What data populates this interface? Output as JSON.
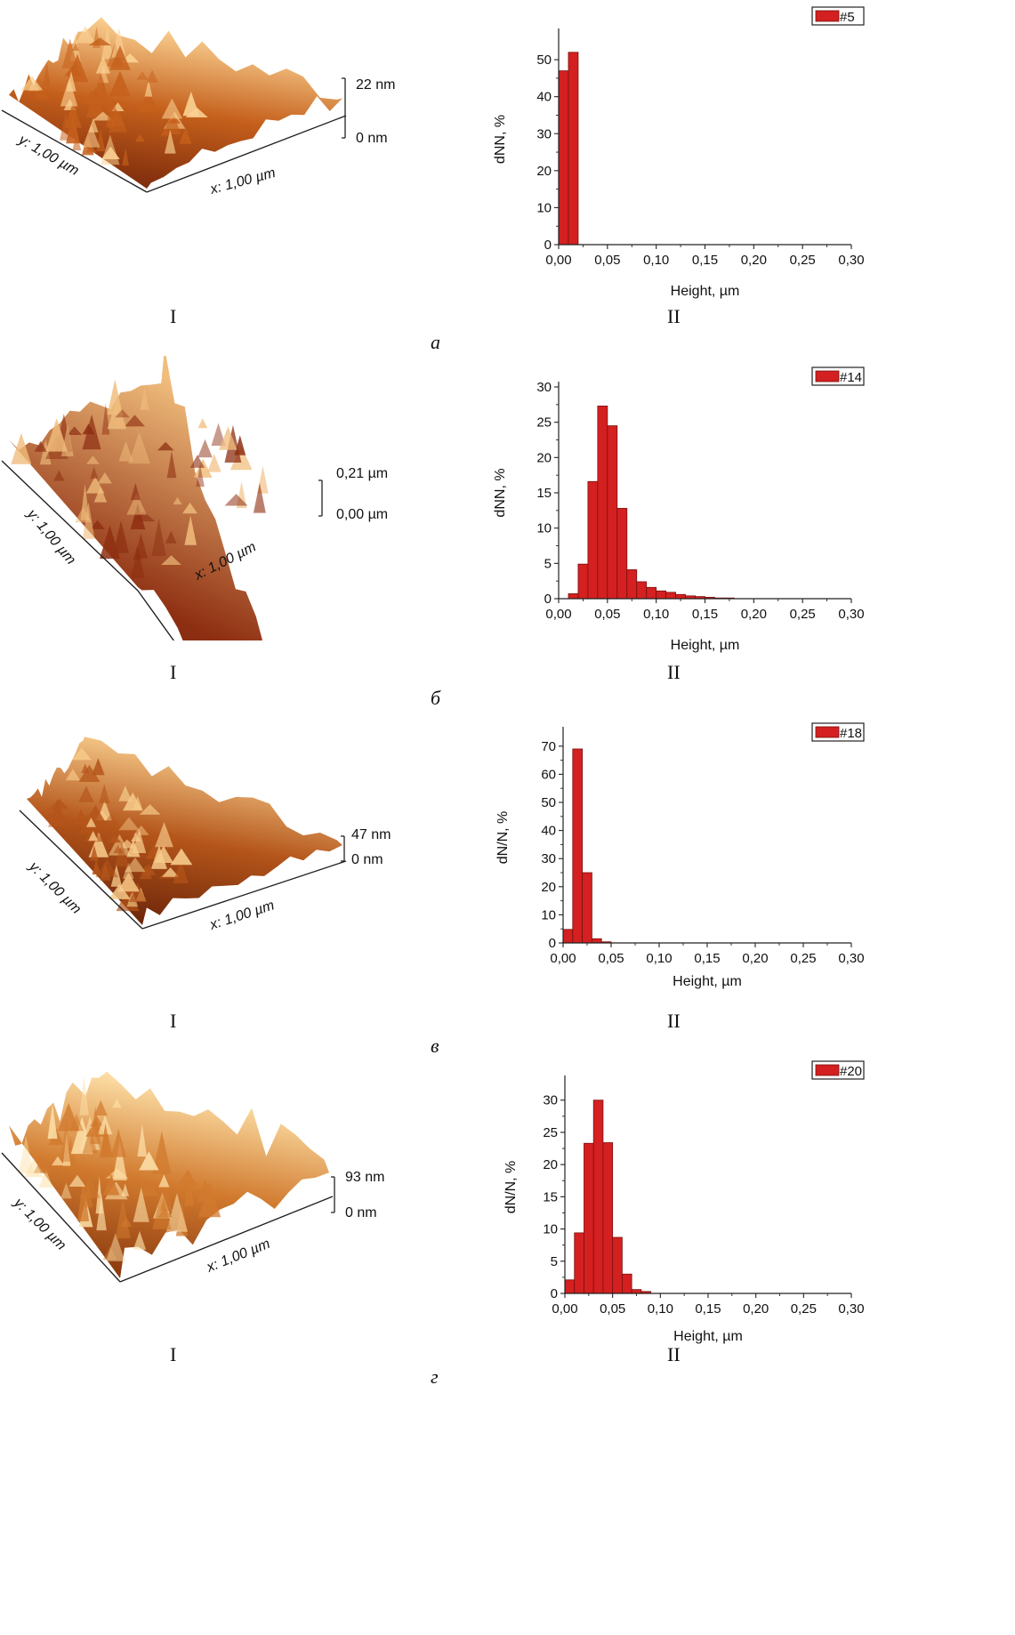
{
  "panels": [
    {
      "letter": "а",
      "caption_left": "I",
      "caption_right": "II",
      "afm": {
        "z_max": "22 nm",
        "z_min": "0 nm",
        "x_label": "x: 1,00 µm",
        "y_label": "y: 1,00 µm",
        "colors": [
          "#6b1e08",
          "#c5601c",
          "#fbd394"
        ]
      },
      "chart_data": {
        "type": "bar",
        "legend": "#5",
        "legend_position": "top-right",
        "xlabel": "Height, µm",
        "ylabel": "dNN, %",
        "xlim": [
          0,
          0.3
        ],
        "ylim": [
          0,
          57
        ],
        "xticks": [
          "0,00",
          "0,05",
          "0,10",
          "0,15",
          "0,20",
          "0,25",
          "0,30"
        ],
        "yticks": [
          0,
          10,
          20,
          30,
          40,
          50
        ],
        "bin_width": 0.01,
        "x": [
          0.005,
          0.015
        ],
        "values": [
          47,
          52
        ],
        "color": "#d42020"
      }
    },
    {
      "letter": "б",
      "caption_left": "I",
      "caption_right": "II",
      "afm": {
        "z_max": "0,21 µm",
        "z_min": "0,00 µm",
        "x_label": "x: 1,00 µm",
        "y_label": "y: 1,00 µm",
        "colors": [
          "#3c0d05",
          "#8e2f12",
          "#f0bd7c"
        ]
      },
      "chart_data": {
        "type": "bar",
        "legend": "#14",
        "legend_position": "top-right",
        "xlabel": "Height, µm",
        "ylabel": "dNN, %",
        "xlim": [
          0,
          0.3
        ],
        "ylim": [
          0,
          30
        ],
        "xticks": [
          "0,00",
          "0,05",
          "0,10",
          "0,15",
          "0,20",
          "0,25",
          "0,30"
        ],
        "yticks": [
          0,
          5,
          10,
          15,
          20,
          25,
          30
        ],
        "bin_width": 0.01,
        "x": [
          0.015,
          0.025,
          0.035,
          0.045,
          0.055,
          0.065,
          0.075,
          0.085,
          0.095,
          0.105,
          0.115,
          0.125,
          0.135,
          0.145,
          0.155,
          0.165,
          0.175
        ],
        "values": [
          0.7,
          4.9,
          16.6,
          27.3,
          24.5,
          12.8,
          4.1,
          2.4,
          1.6,
          1.1,
          0.9,
          0.6,
          0.4,
          0.3,
          0.2,
          0.1,
          0.1
        ],
        "color": "#d42020"
      }
    },
    {
      "letter": "в",
      "caption_left": "I",
      "caption_right": "II",
      "afm": {
        "z_max": "47 nm",
        "z_min": "0 nm",
        "x_label": "x: 1,00 µm",
        "y_label": "y: 1,00 µm",
        "colors": [
          "#5c1a06",
          "#b4551a",
          "#f7cc8c"
        ]
      },
      "chart_data": {
        "type": "bar",
        "legend": "#18",
        "legend_position": "top-right",
        "xlabel": "Height, µm",
        "ylabel": "dN/N, %",
        "xlim": [
          0,
          0.3
        ],
        "ylim": [
          0,
          75
        ],
        "xticks": [
          "0,00",
          "0,05",
          "0,10",
          "0,15",
          "0,20",
          "0,25",
          "0,30"
        ],
        "yticks": [
          0,
          10,
          20,
          30,
          40,
          50,
          60,
          70
        ],
        "bin_width": 0.01,
        "x": [
          0.005,
          0.015,
          0.025,
          0.035,
          0.045
        ],
        "values": [
          4.8,
          69,
          25,
          1.5,
          0.4
        ],
        "color": "#d42020"
      }
    },
    {
      "letter": "г",
      "caption_left": "I",
      "caption_right": "II",
      "afm": {
        "z_max": "93 nm",
        "z_min": "0 nm",
        "x_label": "x: 1,00 µm",
        "y_label": "y: 1,00 µm",
        "colors": [
          "#7a2a08",
          "#d17a2e",
          "#fde0a8"
        ]
      },
      "chart_data": {
        "type": "bar",
        "legend": "#20",
        "legend_position": "top-right",
        "xlabel": "Height, µm",
        "ylabel": "dN/N, %",
        "xlim": [
          0,
          0.3
        ],
        "ylim": [
          0,
          33
        ],
        "xticks": [
          "0,00",
          "0,05",
          "0,10",
          "0,15",
          "0,20",
          "0,25",
          "0,30"
        ],
        "yticks": [
          0,
          5,
          10,
          15,
          20,
          25,
          30
        ],
        "bin_width": 0.01,
        "x": [
          0.005,
          0.015,
          0.025,
          0.035,
          0.045,
          0.055,
          0.065,
          0.075,
          0.085
        ],
        "values": [
          2.1,
          9.4,
          23.3,
          30,
          23.4,
          8.7,
          3,
          0.6,
          0.3
        ],
        "color": "#d42020"
      }
    }
  ]
}
